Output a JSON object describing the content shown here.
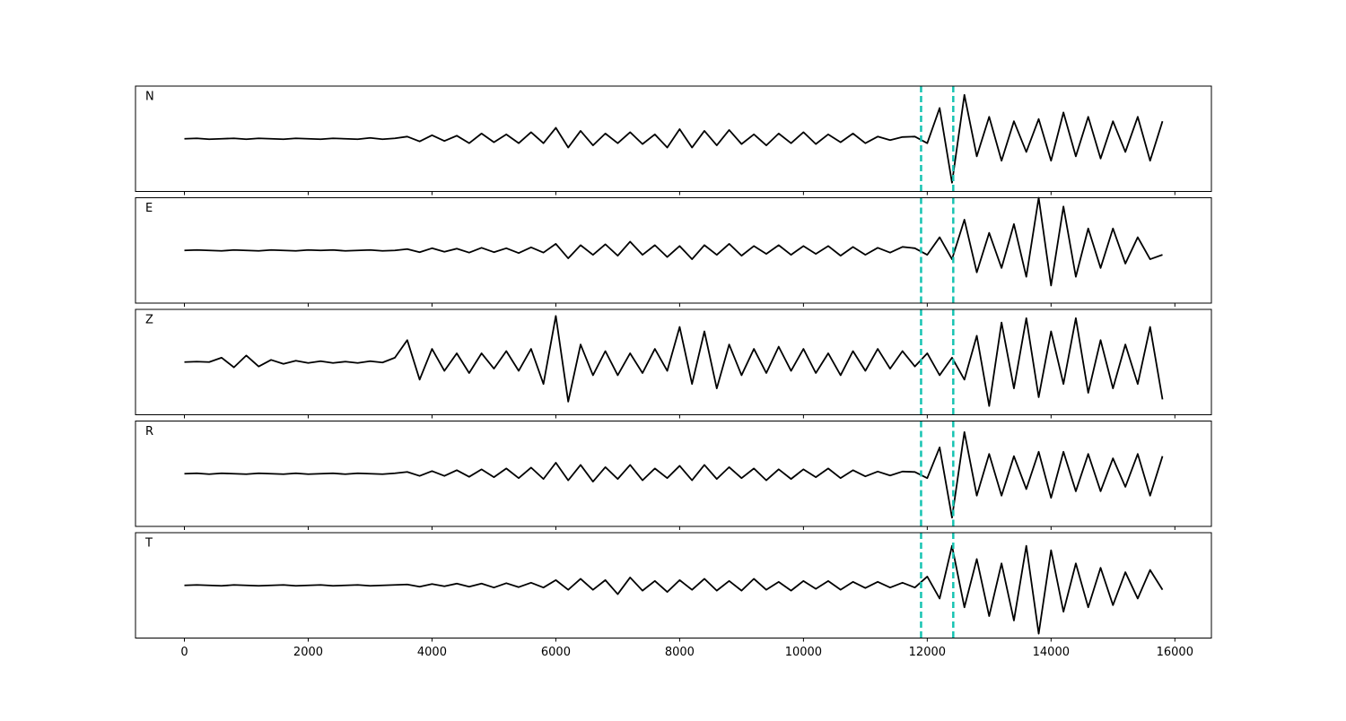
{
  "chart_data": {
    "type": "line",
    "x": [
      0,
      200,
      400,
      600,
      800,
      1000,
      1200,
      1400,
      1600,
      1800,
      2000,
      2200,
      2400,
      2600,
      2800,
      3000,
      3200,
      3400,
      3600,
      3800,
      4000,
      4200,
      4400,
      4600,
      4800,
      5000,
      5200,
      5400,
      5600,
      5800,
      6000,
      6200,
      6400,
      6600,
      6800,
      7000,
      7200,
      7400,
      7600,
      7800,
      8000,
      8200,
      8400,
      8600,
      8800,
      9000,
      9200,
      9400,
      9600,
      9800,
      10000,
      10200,
      10400,
      10600,
      10800,
      11000,
      11200,
      11400,
      11600,
      11800,
      12000,
      12200,
      12400,
      12600,
      12800,
      13000,
      13200,
      13400,
      13600,
      13800,
      14000,
      14200,
      14400,
      14600,
      14800,
      15000,
      15200,
      15400,
      15600,
      15800
    ],
    "xlim": [
      -790,
      16590
    ],
    "xticks": [
      0,
      2000,
      4000,
      6000,
      8000,
      10000,
      12000,
      14000,
      16000
    ],
    "ylim": [
      -1.2,
      1.2
    ],
    "series": [
      {
        "name": "N",
        "color": "#000000",
        "values": [
          0,
          0.01,
          -0.01,
          0,
          0.01,
          -0.01,
          0.01,
          0,
          -0.01,
          0.01,
          0,
          -0.01,
          0.01,
          0,
          -0.01,
          0.02,
          -0.01,
          0.01,
          0.05,
          -0.06,
          0.08,
          -0.05,
          0.07,
          -0.1,
          0.12,
          -0.08,
          0.1,
          -0.1,
          0.15,
          -0.1,
          0.25,
          -0.2,
          0.18,
          -0.15,
          0.12,
          -0.1,
          0.15,
          -0.12,
          0.1,
          -0.2,
          0.22,
          -0.2,
          0.18,
          -0.15,
          0.2,
          -0.12,
          0.1,
          -0.15,
          0.12,
          -0.1,
          0.15,
          -0.12,
          0.1,
          -0.08,
          0.12,
          -0.1,
          0.05,
          -0.03,
          0.04,
          0.05,
          -0.1,
          0.7,
          -1.0,
          1.0,
          -0.4,
          0.5,
          -0.5,
          0.4,
          -0.3,
          0.45,
          -0.5,
          0.6,
          -0.4,
          0.5,
          -0.45,
          0.4,
          -0.3,
          0.5,
          -0.5,
          0.4
        ]
      },
      {
        "name": "E",
        "color": "#000000",
        "values": [
          0,
          0.01,
          0,
          -0.01,
          0.01,
          0,
          -0.01,
          0.01,
          0,
          -0.01,
          0.01,
          0,
          0.01,
          -0.01,
          0,
          0.01,
          -0.01,
          0,
          0.03,
          -0.04,
          0.05,
          -0.03,
          0.04,
          -0.05,
          0.06,
          -0.04,
          0.05,
          -0.06,
          0.07,
          -0.05,
          0.15,
          -0.18,
          0.12,
          -0.1,
          0.14,
          -0.12,
          0.2,
          -0.1,
          0.12,
          -0.15,
          0.1,
          -0.2,
          0.12,
          -0.1,
          0.15,
          -0.12,
          0.1,
          -0.08,
          0.12,
          -0.1,
          0.1,
          -0.08,
          0.1,
          -0.12,
          0.08,
          -0.1,
          0.06,
          -0.05,
          0.08,
          0.05,
          -0.1,
          0.3,
          -0.2,
          0.7,
          -0.5,
          0.4,
          -0.4,
          0.6,
          -0.6,
          1.2,
          -0.8,
          1.0,
          -0.6,
          0.5,
          -0.4,
          0.5,
          -0.3,
          0.3,
          -0.2,
          -0.1
        ]
      },
      {
        "name": "Z",
        "color": "#000000",
        "values": [
          0,
          0.01,
          0,
          0.1,
          -0.12,
          0.15,
          -0.1,
          0.05,
          -0.04,
          0.03,
          -0.02,
          0.02,
          -0.02,
          0.01,
          -0.02,
          0.02,
          -0.01,
          0.1,
          0.5,
          -0.4,
          0.3,
          -0.2,
          0.2,
          -0.25,
          0.2,
          -0.15,
          0.25,
          -0.2,
          0.3,
          -0.5,
          1.05,
          -0.9,
          0.4,
          -0.3,
          0.25,
          -0.3,
          0.2,
          -0.25,
          0.3,
          -0.2,
          0.8,
          -0.5,
          0.7,
          -0.6,
          0.4,
          -0.3,
          0.3,
          -0.25,
          0.35,
          -0.2,
          0.3,
          -0.25,
          0.2,
          -0.3,
          0.25,
          -0.2,
          0.3,
          -0.15,
          0.25,
          -0.1,
          0.2,
          -0.3,
          0.1,
          -0.4,
          0.6,
          -1.0,
          0.9,
          -0.6,
          1.0,
          -0.8,
          0.7,
          -0.5,
          1.0,
          -0.7,
          0.5,
          -0.6,
          0.4,
          -0.5,
          0.8,
          -0.85
        ]
      },
      {
        "name": "R",
        "color": "#000000",
        "values": [
          0,
          0.01,
          -0.01,
          0.01,
          0,
          -0.01,
          0.01,
          0,
          -0.01,
          0.01,
          -0.01,
          0,
          0.01,
          -0.01,
          0.01,
          0,
          -0.01,
          0.01,
          0.04,
          -0.05,
          0.06,
          -0.05,
          0.08,
          -0.07,
          0.1,
          -0.08,
          0.12,
          -0.1,
          0.14,
          -0.12,
          0.25,
          -0.15,
          0.2,
          -0.18,
          0.15,
          -0.12,
          0.2,
          -0.15,
          0.12,
          -0.1,
          0.18,
          -0.15,
          0.2,
          -0.12,
          0.15,
          -0.1,
          0.12,
          -0.15,
          0.1,
          -0.12,
          0.1,
          -0.08,
          0.12,
          -0.1,
          0.08,
          -0.06,
          0.05,
          -0.04,
          0.05,
          0.04,
          -0.1,
          0.6,
          -1.0,
          0.95,
          -0.5,
          0.45,
          -0.5,
          0.4,
          -0.35,
          0.5,
          -0.55,
          0.5,
          -0.4,
          0.45,
          -0.4,
          0.35,
          -0.3,
          0.45,
          -0.5,
          0.4
        ]
      },
      {
        "name": "T",
        "color": "#000000",
        "values": [
          0,
          0.01,
          0,
          -0.01,
          0.01,
          0,
          -0.01,
          0,
          0.01,
          -0.01,
          0,
          0.01,
          -0.01,
          0,
          0.01,
          -0.01,
          0,
          0.01,
          0.02,
          -0.03,
          0.03,
          -0.02,
          0.04,
          -0.03,
          0.04,
          -0.05,
          0.05,
          -0.04,
          0.06,
          -0.05,
          0.12,
          -0.1,
          0.15,
          -0.1,
          0.12,
          -0.2,
          0.18,
          -0.12,
          0.1,
          -0.15,
          0.12,
          -0.1,
          0.15,
          -0.12,
          0.1,
          -0.12,
          0.15,
          -0.1,
          0.08,
          -0.12,
          0.1,
          -0.08,
          0.1,
          -0.1,
          0.08,
          -0.06,
          0.08,
          -0.05,
          0.06,
          -0.05,
          0.2,
          -0.3,
          0.9,
          -0.5,
          0.6,
          -0.7,
          0.5,
          -0.8,
          0.9,
          -1.1,
          0.8,
          -0.6,
          0.5,
          -0.5,
          0.4,
          -0.45,
          0.3,
          -0.3,
          0.35,
          -0.1
        ]
      }
    ],
    "markers": [
      {
        "x": 11900
      },
      {
        "x": 12420
      }
    ],
    "marker_color": "#17c3b2"
  }
}
